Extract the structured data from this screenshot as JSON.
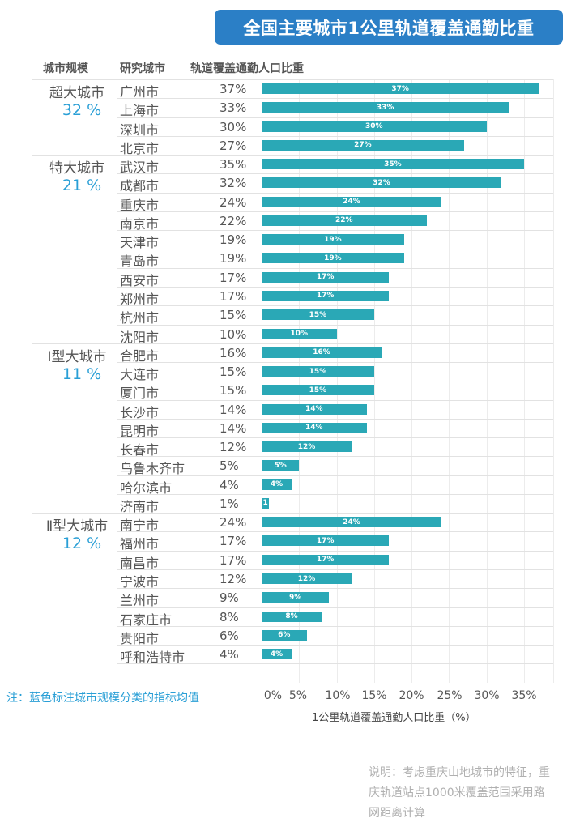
{
  "title": "全国主要城市1公里轨道覆盖通勤比重",
  "headers": {
    "scale": "城市规模",
    "city": "研究城市",
    "ratio": "轨道覆盖通勤人口比重"
  },
  "chart_data": {
    "type": "bar",
    "orientation": "horizontal",
    "title": "全国主要城市1公里轨道覆盖通勤比重",
    "xlabel": "1公里轨道覆盖通勤人口比重（%）",
    "xlim": [
      0,
      38
    ],
    "xticks": [
      "0%",
      "5%",
      "10%",
      "15%",
      "20%",
      "25%",
      "30%",
      "35%"
    ],
    "groups": [
      {
        "name": "超大城市",
        "avg": "32 %",
        "cities": [
          {
            "city": "广州市",
            "value": 37,
            "label": "37%",
            "bar_label": "37%"
          },
          {
            "city": "上海市",
            "value": 33,
            "label": "33%",
            "bar_label": "33%"
          },
          {
            "city": "深圳市",
            "value": 30,
            "label": "30%",
            "bar_label": "30%"
          },
          {
            "city": "北京市",
            "value": 27,
            "label": "27%",
            "bar_label": "27%"
          }
        ]
      },
      {
        "name": "特大城市",
        "avg": "21 %",
        "cities": [
          {
            "city": "武汉市",
            "value": 35,
            "label": "35%",
            "bar_label": "35%"
          },
          {
            "city": "成都市",
            "value": 32,
            "label": "32%",
            "bar_label": "32%"
          },
          {
            "city": "重庆市",
            "value": 24,
            "label": "24%",
            "bar_label": "24%"
          },
          {
            "city": "南京市",
            "value": 22,
            "label": "22%",
            "bar_label": "22%"
          },
          {
            "city": "天津市",
            "value": 19,
            "label": "19%",
            "bar_label": "19%"
          },
          {
            "city": "青岛市",
            "value": 19,
            "label": "19%",
            "bar_label": "19%"
          },
          {
            "city": "西安市",
            "value": 17,
            "label": "17%",
            "bar_label": "17%"
          },
          {
            "city": "郑州市",
            "value": 17,
            "label": "17%",
            "bar_label": "17%"
          },
          {
            "city": "杭州市",
            "value": 15,
            "label": "15%",
            "bar_label": "15%"
          },
          {
            "city": "沈阳市",
            "value": 10,
            "label": "10%",
            "bar_label": "10%"
          }
        ]
      },
      {
        "name": "Ⅰ型大城市",
        "avg": "11 %",
        "cities": [
          {
            "city": "合肥市",
            "value": 16,
            "label": "16%",
            "bar_label": "16%"
          },
          {
            "city": "大连市",
            "value": 15,
            "label": "15%",
            "bar_label": "15%"
          },
          {
            "city": "厦门市",
            "value": 15,
            "label": "15%",
            "bar_label": "15%"
          },
          {
            "city": "长沙市",
            "value": 14,
            "label": "14%",
            "bar_label": "14%"
          },
          {
            "city": "昆明市",
            "value": 14,
            "label": "14%",
            "bar_label": "14%"
          },
          {
            "city": "长春市",
            "value": 12,
            "label": "12%",
            "bar_label": "12%"
          },
          {
            "city": "乌鲁木齐市",
            "value": 5,
            "label": "5%",
            "bar_label": "5%"
          },
          {
            "city": "哈尔滨市",
            "value": 4,
            "label": "4%",
            "bar_label": "4%"
          },
          {
            "city": "济南市",
            "value": 1,
            "label": "1%",
            "bar_label": "1"
          }
        ]
      },
      {
        "name": "Ⅱ型大城市",
        "avg": "12 %",
        "cities": [
          {
            "city": "南宁市",
            "value": 24,
            "label": "24%",
            "bar_label": "24%"
          },
          {
            "city": "福州市",
            "value": 17,
            "label": "17%",
            "bar_label": "17%"
          },
          {
            "city": "南昌市",
            "value": 17,
            "label": "17%",
            "bar_label": "17%"
          },
          {
            "city": "宁波市",
            "value": 12,
            "label": "12%",
            "bar_label": "12%"
          },
          {
            "city": "兰州市",
            "value": 9,
            "label": "9%",
            "bar_label": "9%"
          },
          {
            "city": "石家庄市",
            "value": 8,
            "label": "8%",
            "bar_label": "8%"
          },
          {
            "city": "贵阳市",
            "value": 6,
            "label": "6%",
            "bar_label": "6%"
          },
          {
            "city": "呼和浩特市",
            "value": 4,
            "label": "4%",
            "bar_label": "4%"
          }
        ]
      }
    ],
    "colors": {
      "bar": "#2aa8b6",
      "avg": "#2a9fd6",
      "title_bg": "#2b7fc6"
    }
  },
  "note": "注：蓝色标注城市规模分类的指标均值",
  "explanation": "说明：考虑重庆山地城市的特征，重庆轨道站点1000米覆盖范围采用路网距离计算"
}
